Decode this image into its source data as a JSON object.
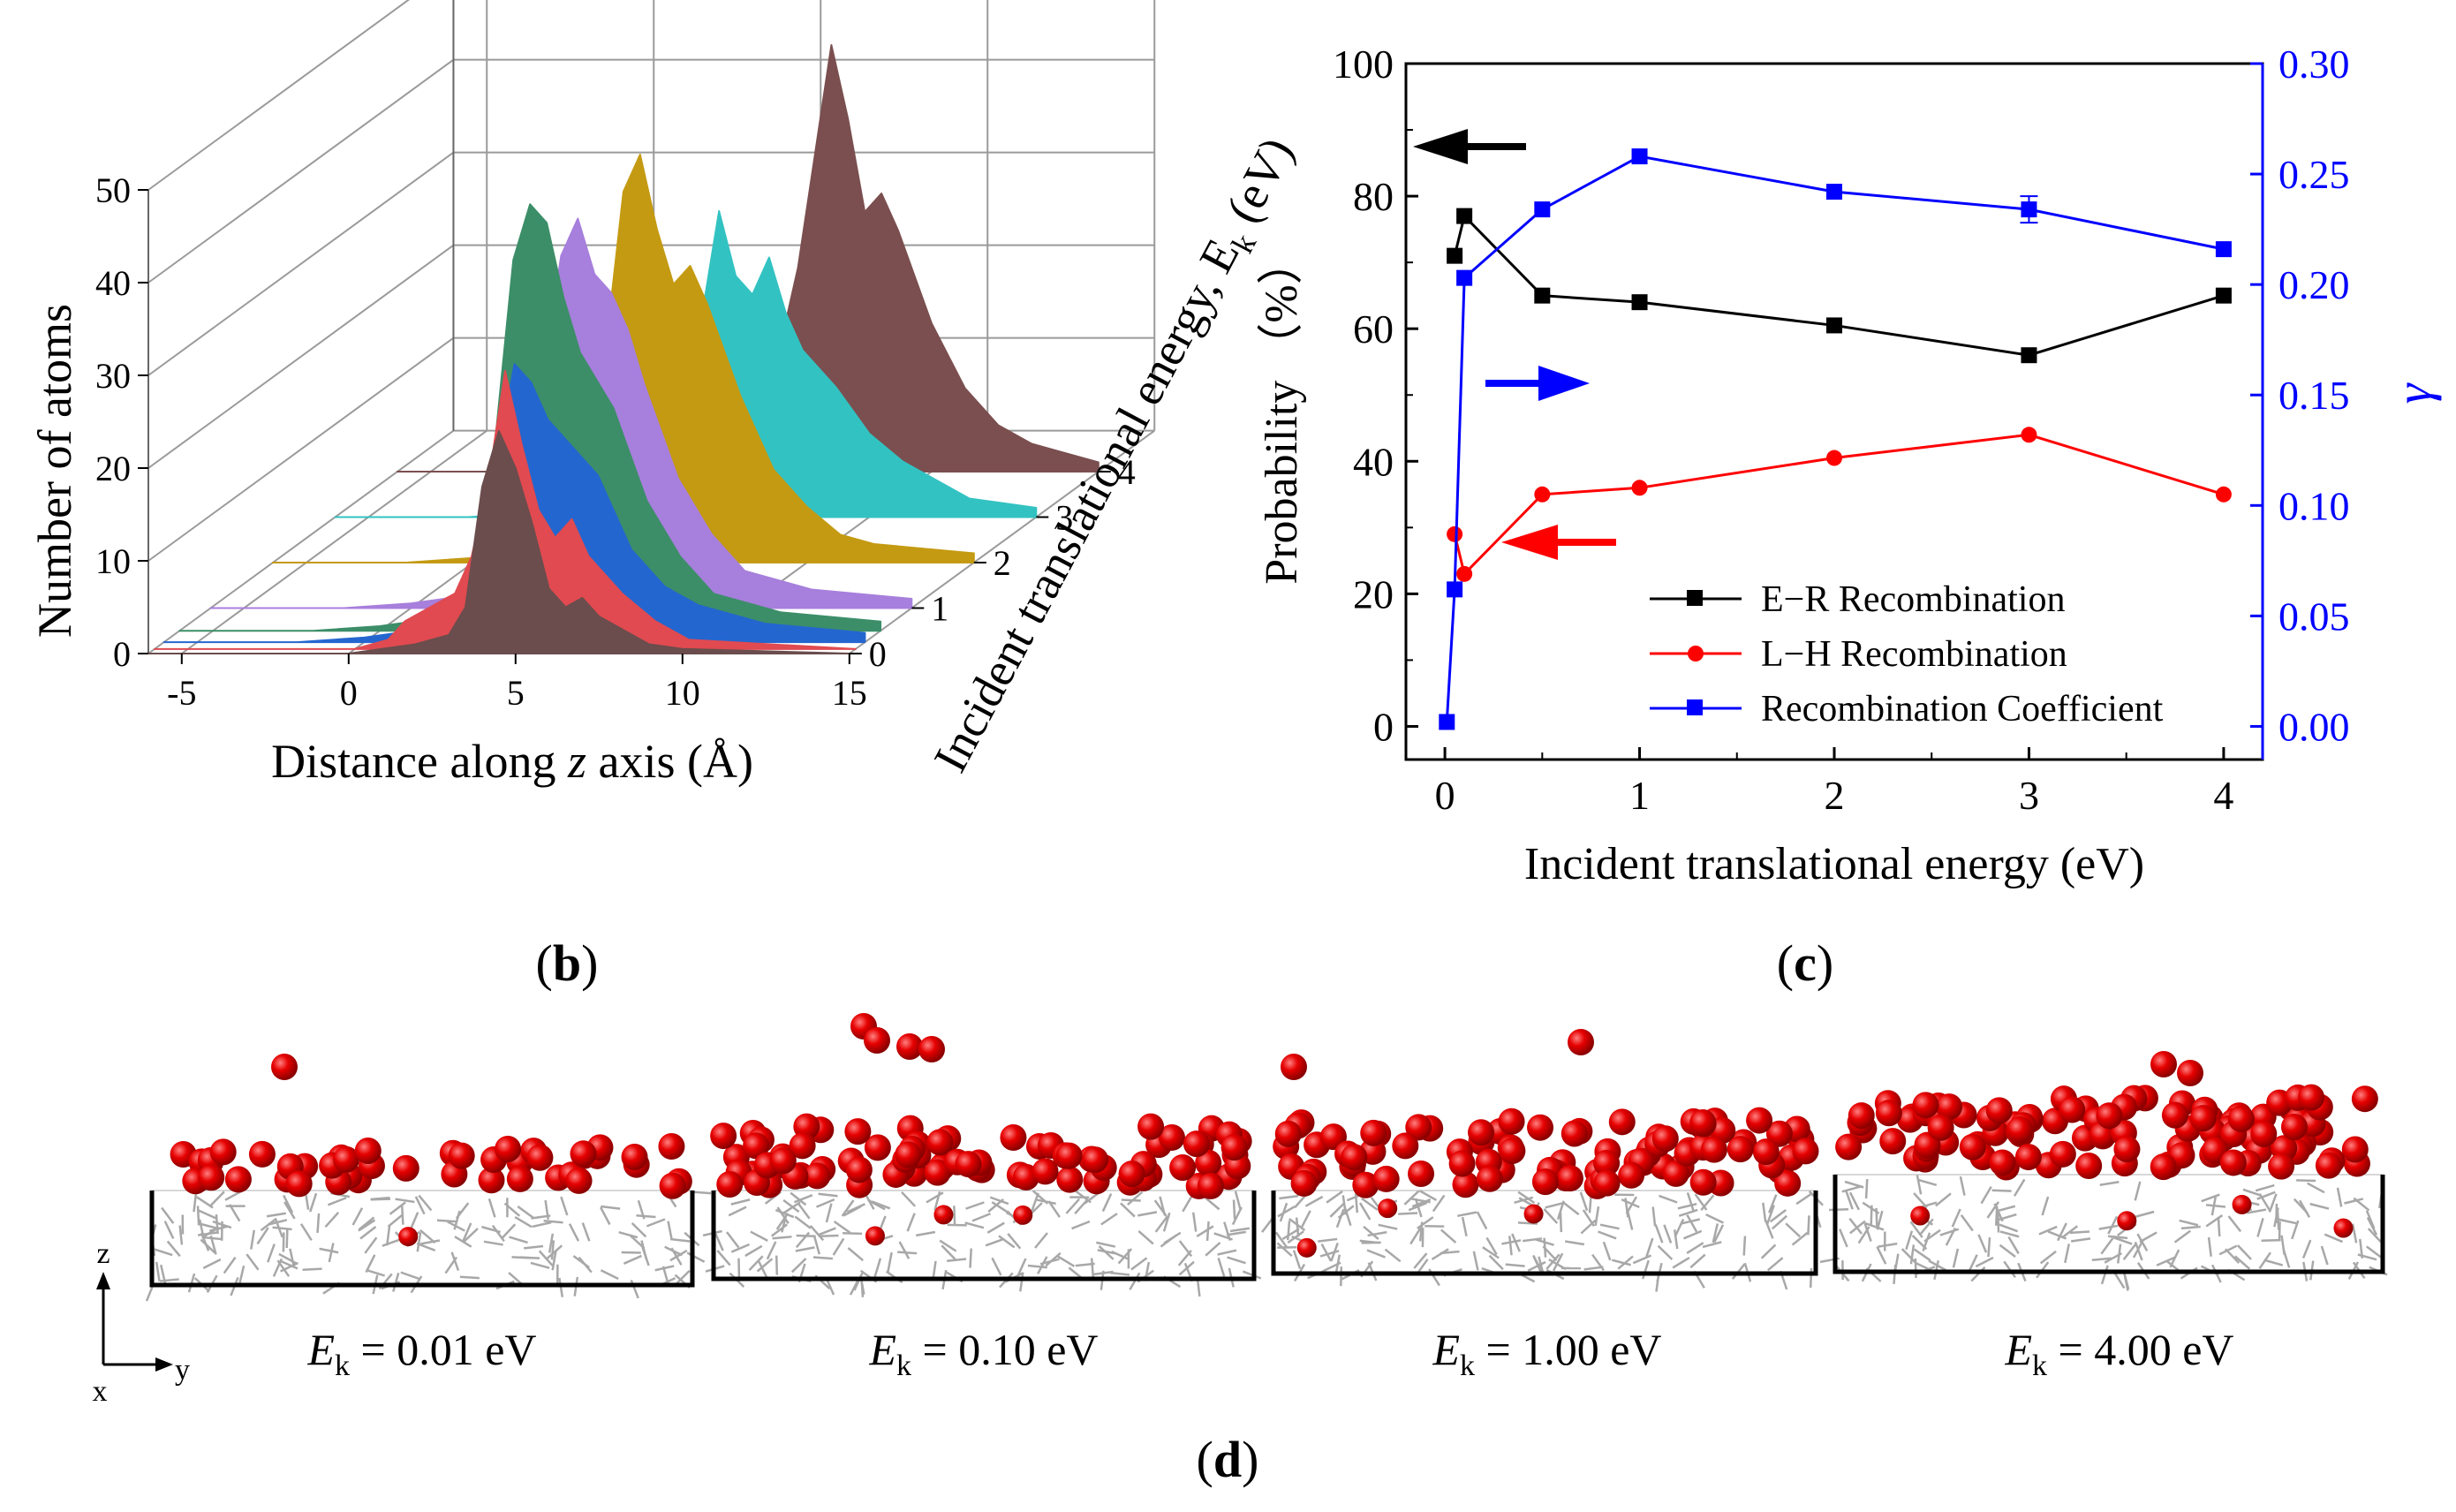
{
  "panel_labels": {
    "b": "b",
    "c": "c",
    "d": "d"
  },
  "chart_data": [
    {
      "panel": "b",
      "type": "area",
      "title": "",
      "xlabel_pre": "Distance along ",
      "xlabel_var": "z",
      "xlabel_post": " axis (Å)",
      "ylabel": "Number of atoms",
      "zlabel": "Incident translational energy, E",
      "zlabel_sub": "k",
      "zlabel_unit": " (eV)",
      "xlim": [
        -6,
        15
      ],
      "ylim": [
        0,
        50
      ],
      "x_ticks": [
        "-5",
        "0",
        "5",
        "10",
        "15"
      ],
      "x_tick_values": [
        -5,
        0,
        5,
        10,
        15
      ],
      "y_ticks": [
        "0",
        "10",
        "20",
        "30",
        "40",
        "50"
      ],
      "y_tick_values": [
        0,
        10,
        20,
        30,
        40,
        50
      ],
      "z_ticks": [
        "0",
        "1",
        "2",
        "3",
        "4"
      ],
      "z_tick_values": [
        0,
        1,
        2,
        3,
        4
      ],
      "series": [
        {
          "name": "4",
          "depth": 4,
          "color": "#7b4f4f",
          "x": [
            -6,
            -2,
            0,
            2,
            3,
            4,
            5,
            5.5,
            6,
            6.5,
            7,
            7.5,
            8,
            8.5,
            9,
            10,
            11,
            12,
            13,
            15
          ],
          "values": [
            0,
            0,
            0.5,
            1,
            1.5,
            3,
            8,
            14,
            22,
            34,
            46,
            38,
            28,
            30,
            26,
            16,
            9,
            5,
            3,
            1
          ]
        },
        {
          "name": "3",
          "depth": 3,
          "color": "#33c2c2",
          "x": [
            -6,
            -2,
            0,
            1,
            2,
            3,
            4,
            4.5,
            5,
            5.5,
            6,
            6.5,
            7,
            7.5,
            8,
            9,
            10,
            11,
            12,
            13,
            15
          ],
          "values": [
            0,
            0,
            0.5,
            1,
            1.5,
            2,
            4,
            10,
            22,
            33,
            26,
            24,
            28,
            22,
            18,
            14,
            9,
            6,
            4,
            2,
            1
          ]
        },
        {
          "name": "2",
          "depth": 2,
          "color": "#c49a12",
          "x": [
            -6,
            -2,
            0,
            1,
            2,
            3,
            3.5,
            4,
            4.5,
            5,
            5.5,
            6,
            6.5,
            7,
            8,
            9,
            10,
            11,
            12,
            15
          ],
          "values": [
            0,
            0,
            0.5,
            1,
            2,
            5,
            10,
            24,
            40,
            44,
            36,
            30,
            32,
            28,
            18,
            10,
            6,
            3,
            2,
            1
          ]
        },
        {
          "name": "1",
          "depth": 1,
          "color": "#a77fdc",
          "x": [
            -6,
            -2,
            0,
            1,
            2,
            2.5,
            3,
            3.5,
            4,
            4.5,
            5,
            5.5,
            6,
            6.5,
            7,
            8,
            9,
            10,
            12,
            15
          ],
          "values": [
            0,
            0,
            0.5,
            1,
            2,
            3,
            4,
            10,
            26,
            38,
            42,
            36,
            34,
            30,
            24,
            14,
            8,
            4,
            2,
            1
          ]
        },
        {
          "name": "0.1",
          "depth": 0.5,
          "color": "#3c8e68",
          "x": [
            -6,
            -2,
            0,
            1,
            2,
            2.5,
            3,
            3.5,
            4,
            4.5,
            5,
            5.5,
            6,
            6.5,
            7,
            8,
            9,
            10,
            12,
            15
          ],
          "values": [
            0,
            0,
            0.5,
            1,
            3,
            5,
            8,
            22,
            40,
            46,
            44,
            36,
            30,
            27,
            24,
            14,
            8,
            4,
            2,
            1
          ]
        },
        {
          "name": "0.05",
          "depth": 0.25,
          "color": "#2466cf",
          "x": [
            -6,
            -2,
            0,
            1,
            2,
            2.5,
            3,
            3.5,
            4,
            4.5,
            5,
            5.5,
            6,
            6.5,
            7,
            7.5,
            8,
            9,
            10,
            12,
            15
          ],
          "values": [
            0,
            0,
            0.5,
            1,
            2,
            4,
            6,
            12,
            20,
            30,
            28,
            24,
            22,
            20,
            18,
            14,
            10,
            6,
            4,
            2,
            1
          ]
        },
        {
          "name": "0.01",
          "depth": 0.1,
          "color": "#e04a50",
          "x": [
            -6,
            0,
            1,
            1.5,
            2,
            2.5,
            3,
            3.5,
            4,
            4.5,
            5,
            5.5,
            6,
            6.5,
            7,
            8,
            9,
            10,
            15
          ],
          "values": [
            0,
            0,
            1,
            3,
            4,
            5,
            6,
            10,
            18,
            30,
            22,
            15,
            12,
            14,
            10,
            6,
            3,
            1,
            0
          ]
        },
        {
          "name": "0",
          "depth": 0,
          "color": "#6b4d4d",
          "x": [
            -6,
            0,
            1,
            2,
            3,
            3.5,
            4,
            4.5,
            5,
            5.5,
            6,
            6.5,
            7,
            7.5,
            8,
            9,
            10,
            15
          ],
          "values": [
            0,
            0,
            0.5,
            1,
            2,
            5,
            18,
            24,
            20,
            14,
            7,
            5,
            6,
            4,
            3,
            1,
            0.5,
            0
          ]
        }
      ]
    },
    {
      "panel": "c",
      "type": "line",
      "title": "",
      "xlabel": "Incident translational energy (eV)",
      "ylabel": "Probability （%）",
      "ylabel2": "γ",
      "xlim": [
        -0.2,
        4.2
      ],
      "ylim": [
        -5,
        100
      ],
      "ylim2": [
        -0.015,
        0.3
      ],
      "x_ticks": [
        "0",
        "1",
        "2",
        "3",
        "4"
      ],
      "x_tick_values": [
        0,
        1,
        2,
        3,
        4
      ],
      "y_ticks": [
        "0",
        "20",
        "40",
        "60",
        "80",
        "100"
      ],
      "y_tick_values": [
        0,
        20,
        40,
        60,
        80,
        100
      ],
      "y2_ticks": [
        "0.00",
        "0.05",
        "0.10",
        "0.15",
        "0.20",
        "0.25",
        "0.30"
      ],
      "y2_tick_values": [
        0,
        0.05,
        0.1,
        0.15,
        0.2,
        0.25,
        0.3
      ],
      "legend_position": "bottom-right",
      "series": [
        {
          "name": "E−R Recombination",
          "axis": "left",
          "color": "#000000",
          "marker": "square",
          "x": [
            0.05,
            0.1,
            0.5,
            1,
            2,
            3,
            4
          ],
          "values": [
            71,
            77,
            65,
            64,
            60.5,
            56,
            65
          ]
        },
        {
          "name": "L−H Recombination",
          "axis": "left",
          "color": "#ff0000",
          "marker": "circle",
          "x": [
            0.05,
            0.1,
            0.5,
            1,
            2,
            3,
            4
          ],
          "values": [
            29,
            23,
            35,
            36,
            40.5,
            44,
            35
          ]
        },
        {
          "name": "Recombination Coefficient",
          "axis": "right",
          "color": "#0000ff",
          "marker": "square",
          "x": [
            0.01,
            0.05,
            0.1,
            0.5,
            1,
            2,
            3,
            4
          ],
          "values": [
            0.002,
            0.062,
            0.203,
            0.234,
            0.258,
            0.242,
            0.234,
            0.216
          ],
          "error_bar": {
            "x": 3,
            "value": 0.006
          }
        }
      ]
    }
  ],
  "panel_d": {
    "axis_labels": {
      "z": "z",
      "x": "x",
      "y": "y"
    },
    "captions": [
      {
        "pre": "E",
        "sub": "k",
        "post": " = 0.01 eV"
      },
      {
        "pre": "E",
        "sub": "k",
        "post": " = 0.10 eV"
      },
      {
        "pre": "E",
        "sub": "k",
        "post": " = 1.00 eV"
      },
      {
        "pre": "E",
        "sub": "k",
        "post": " = 4.00 eV"
      }
    ]
  },
  "colors": {
    "atom_red": "#e00000",
    "lattice_gray": "#a8a8a8",
    "right_axis": "#0000ff"
  }
}
